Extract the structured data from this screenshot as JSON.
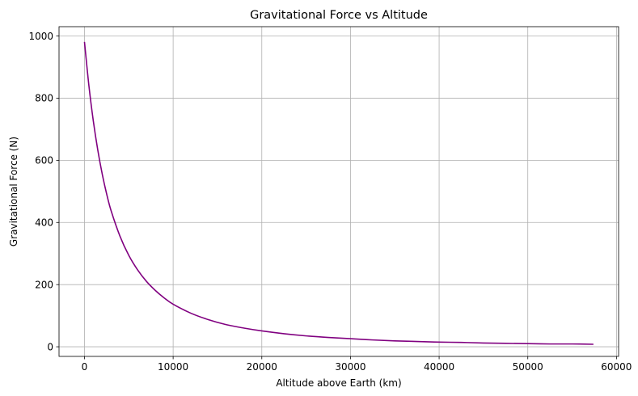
{
  "chart_data": {
    "type": "line",
    "title": "Gravitational Force vs Altitude",
    "xlabel": "Altitude above Earth (km)",
    "ylabel": "Gravitational Force (N)",
    "xlim": [
      -2870,
      60240
    ],
    "ylim": [
      -31,
      1030
    ],
    "xticks": [
      0,
      10000,
      20000,
      30000,
      40000,
      50000,
      60000
    ],
    "xtick_labels": [
      "0",
      "10000",
      "20000",
      "30000",
      "40000",
      "50000",
      "60000"
    ],
    "yticks": [
      0,
      200,
      400,
      600,
      800,
      1000
    ],
    "ytick_labels": [
      "0",
      "200",
      "400",
      "600",
      "800",
      "1000"
    ],
    "grid": true,
    "line_color": "#800080",
    "series": [
      {
        "x": [
          0,
          500,
          1000,
          1500,
          2000,
          2500,
          3000,
          4000,
          5000,
          6000,
          7000,
          8000,
          9000,
          10000,
          12000,
          14000,
          16000,
          18000,
          20000,
          22500,
          25000,
          27500,
          30000,
          32500,
          35000,
          37500,
          40000,
          42500,
          45000,
          47500,
          50000,
          52500,
          55000,
          57400
        ],
        "y": [
          981,
          840,
          726,
          633,
          556,
          492,
          438,
          356,
          294,
          247,
          210,
          181,
          157,
          137,
          108,
          87,
          71,
          60,
          51,
          42,
          35,
          30,
          26,
          22,
          19,
          17,
          15,
          14,
          12,
          11,
          10,
          9,
          9,
          8
        ]
      }
    ]
  }
}
